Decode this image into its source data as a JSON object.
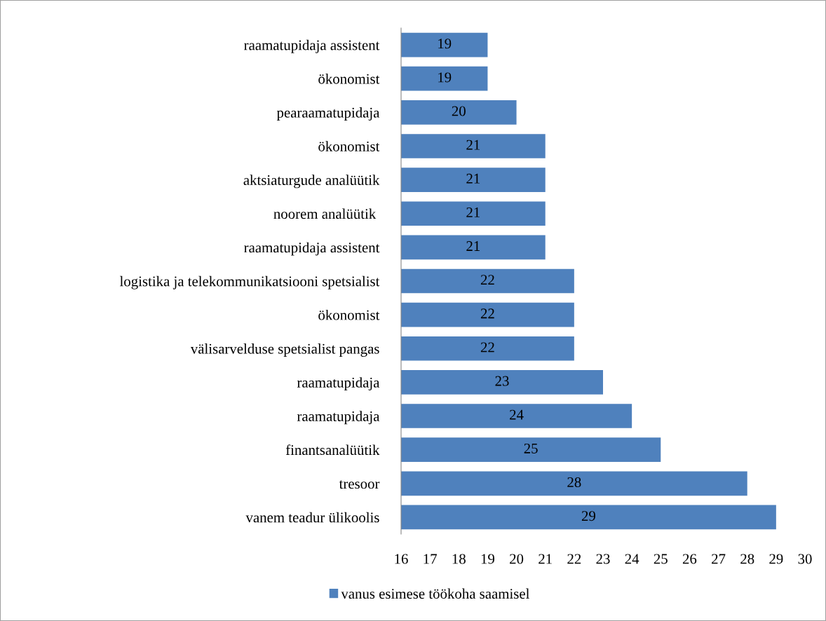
{
  "chart_data": {
    "type": "bar",
    "orientation": "horizontal",
    "categories": [
      "raamatupidaja assistent",
      "ökonomist",
      "pearaamatupidaja",
      "ökonomist",
      "aktsiaturgude analüütik",
      "noorem analüütik ",
      "raamatupidaja assistent",
      "logistika ja telekommunikatsiooni spetsialist",
      "ökonomist",
      "välisarvelduse spetsialist pangas",
      "raamatupidaja",
      "raamatupidaja",
      "finantsanalüütik",
      "tresoor",
      "vanem teadur ülikoolis"
    ],
    "series": [
      {
        "name": "vanus esimese töökoha saamisel",
        "color": "#4f81bd",
        "values": [
          19,
          19,
          20,
          21,
          21,
          21,
          21,
          22,
          22,
          22,
          23,
          24,
          25,
          28,
          29
        ]
      }
    ],
    "xlim": [
      16,
      30
    ],
    "xticks": [
      16,
      17,
      18,
      19,
      20,
      21,
      22,
      23,
      24,
      25,
      26,
      27,
      28,
      29,
      30
    ],
    "data_labels": true,
    "legend": "bottom",
    "grid": false
  }
}
